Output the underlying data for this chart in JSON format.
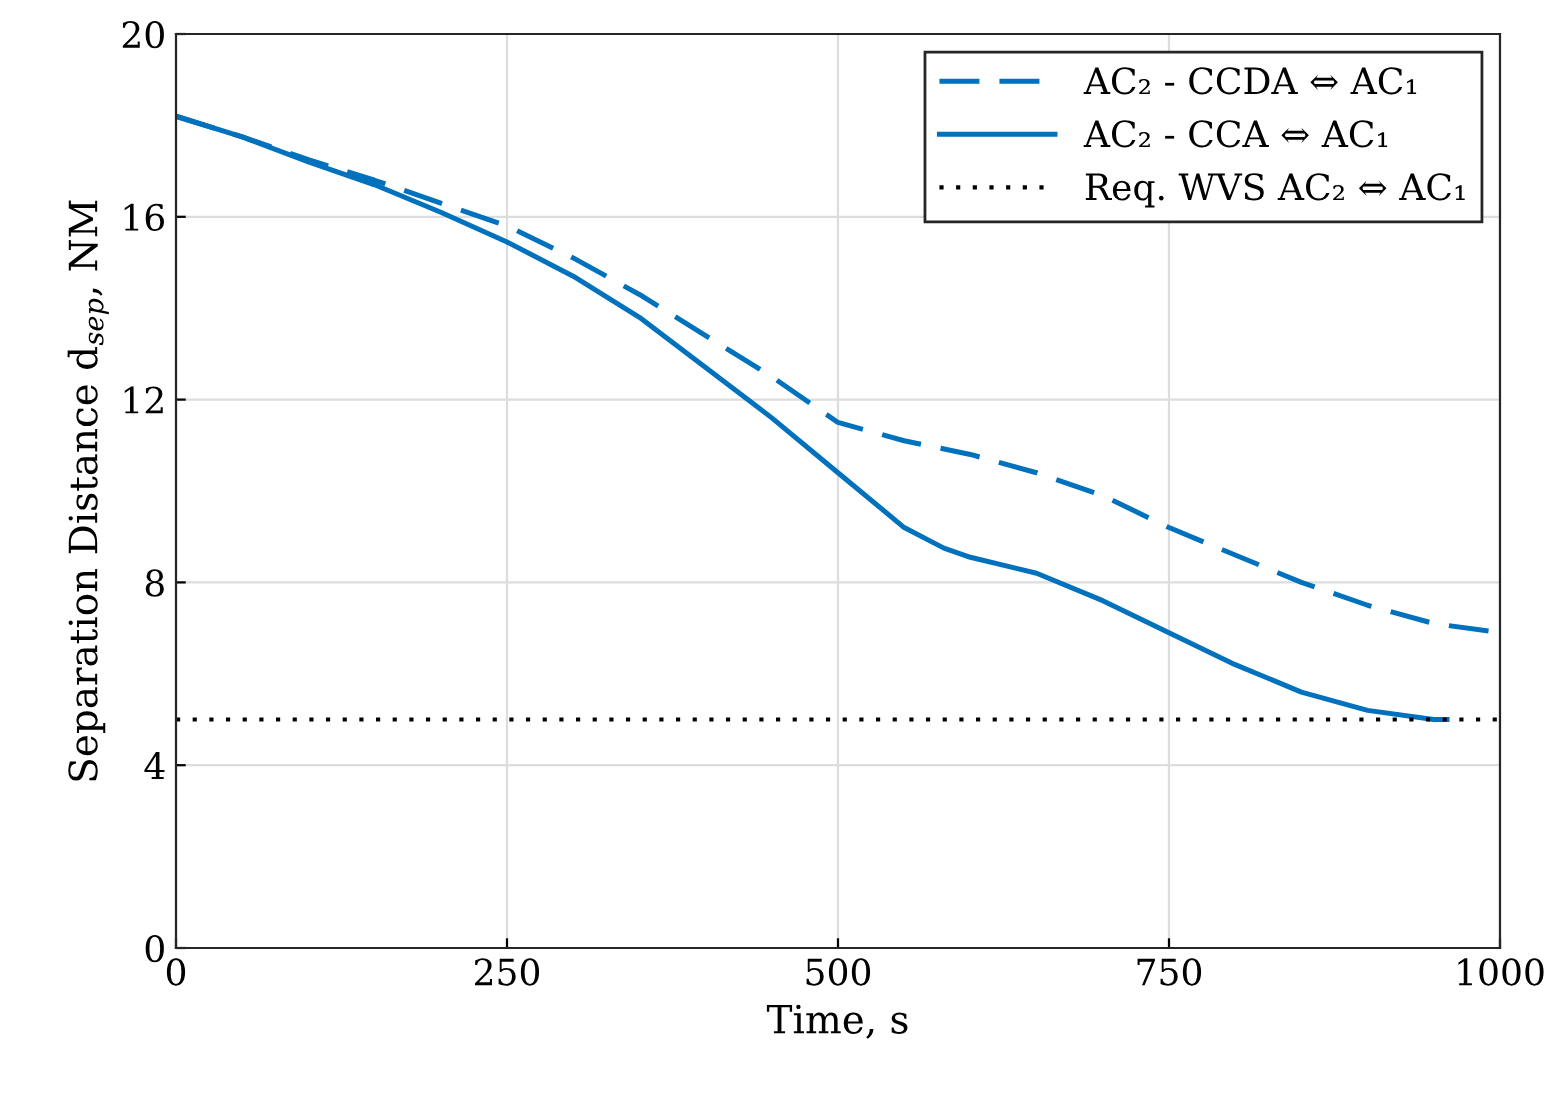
{
  "chart_data": {
    "type": "line",
    "xlabel": "Time, s",
    "ylabel": "Separation Distance d$_{sep}$, NM",
    "xlim": [
      0,
      1000
    ],
    "xticks": [
      0,
      250,
      500,
      750,
      1000
    ],
    "ylim": [
      0,
      20
    ],
    "yticks": [
      0,
      4,
      8,
      12,
      16,
      20
    ],
    "grid": true,
    "legend": "top right",
    "series": [
      {
        "name": "AC₂ - CCDA ⇔ AC₁",
        "color": "#0072bd",
        "line_style": "dashed",
        "x": [
          0,
          50,
          100,
          150,
          200,
          250,
          300,
          350,
          400,
          450,
          500,
          550,
          600,
          650,
          700,
          750,
          800,
          850,
          900,
          950,
          1000
        ],
        "values": [
          18.2,
          17.75,
          17.25,
          16.8,
          16.3,
          15.8,
          15.1,
          14.3,
          13.4,
          12.5,
          11.5,
          11.1,
          10.8,
          10.4,
          9.9,
          9.2,
          8.6,
          8.0,
          7.5,
          7.1,
          6.9
        ]
      },
      {
        "name": "AC₂ - CCA ⇔ AC₁",
        "color": "#0072bd",
        "line_style": "solid",
        "x": [
          0,
          50,
          100,
          150,
          200,
          250,
          300,
          350,
          400,
          450,
          500,
          550,
          580,
          600,
          650,
          700,
          750,
          800,
          850,
          900,
          950,
          960
        ],
        "values": [
          18.2,
          17.75,
          17.2,
          16.7,
          16.1,
          15.45,
          14.7,
          13.8,
          12.7,
          11.6,
          10.4,
          9.2,
          8.75,
          8.55,
          8.2,
          7.6,
          6.9,
          6.2,
          5.6,
          5.2,
          5.0,
          5.0
        ]
      },
      {
        "name": "Req. WVS AC₂ ⇔ AC₁",
        "color": "#000000",
        "line_style": "dotted",
        "x": [
          0,
          1000
        ],
        "values": [
          5,
          5
        ]
      }
    ]
  }
}
